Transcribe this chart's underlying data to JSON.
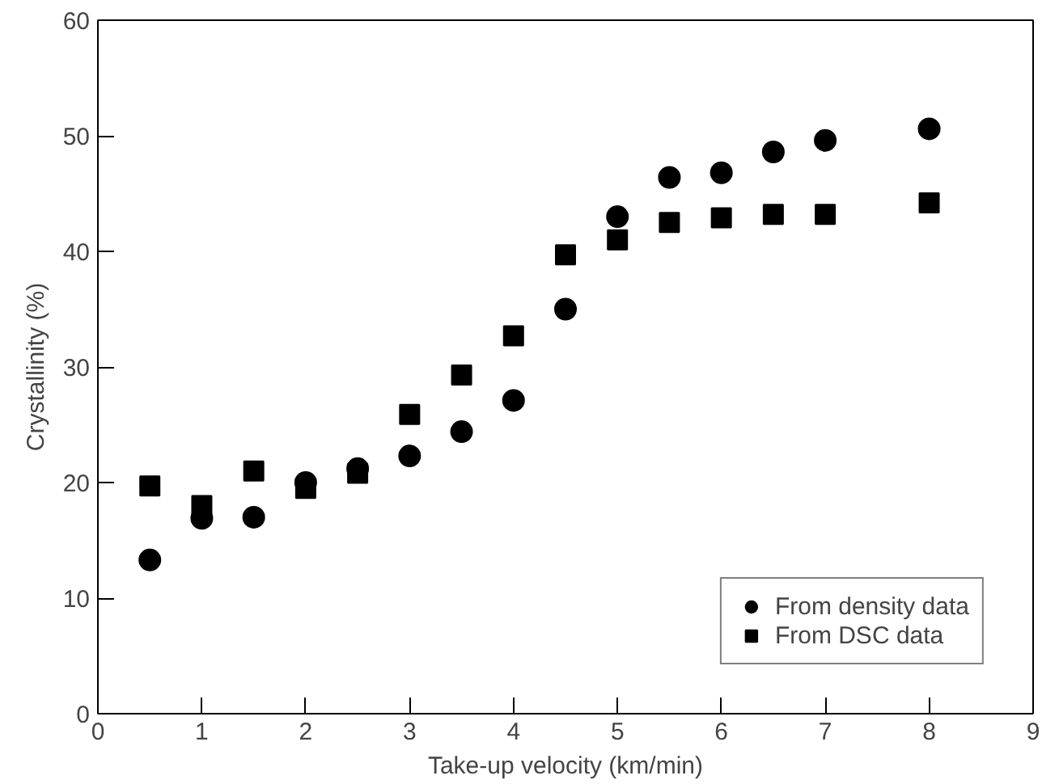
{
  "chart_data": {
    "type": "scatter",
    "xlabel": "Take-up velocity (km/min)",
    "ylabel": "Crystallinity (%)",
    "x": [
      0.5,
      1,
      1.5,
      2,
      2.5,
      3,
      3.5,
      4,
      4.5,
      5,
      5.5,
      6,
      6.5,
      7,
      8
    ],
    "series": [
      {
        "name": "From density data",
        "color": "#000000",
        "marker": "circle",
        "values": [
          13.3,
          16.9,
          17,
          20,
          21.2,
          22.3,
          24.4,
          27.1,
          35,
          43,
          46.4,
          46.8,
          48.6,
          49.6,
          50.6
        ]
      },
      {
        "name": "From DSC data",
        "color": "#000000",
        "marker": "square",
        "values": [
          19.7,
          18,
          21,
          19.5,
          20.8,
          25.9,
          29.3,
          32.7,
          39.7,
          41,
          42.5,
          42.9,
          43.2,
          43.2,
          44.2
        ]
      }
    ],
    "xlim": [
      0,
      9
    ],
    "xticks": [
      0,
      1,
      2,
      3,
      4,
      5,
      6,
      7,
      8,
      9
    ],
    "ylim": [
      0,
      60
    ],
    "yticks": [
      0,
      10,
      20,
      30,
      40,
      50,
      60
    ],
    "grid": false,
    "legend": "bottom right"
  }
}
